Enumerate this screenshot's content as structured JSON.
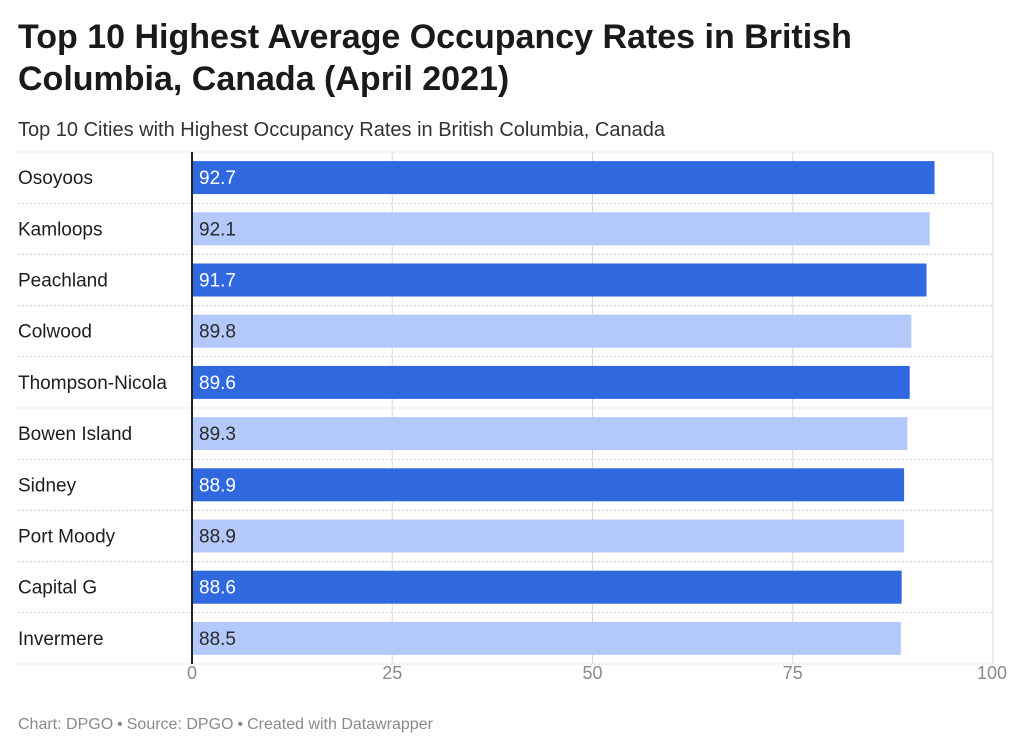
{
  "title": "Top 10 Highest Average Occupancy Rates in British Columbia, Canada (April 2021)",
  "subtitle": "Top 10 Cities with Highest Occupancy Rates in British Columbia, Canada",
  "footer": {
    "chart": "Chart: DPGO",
    "source": "Source: DPGO",
    "created": "Created with Datawrapper",
    "separator": "•"
  },
  "colors": {
    "dark_bar": "#3068e0",
    "light_bar": "#b3c8fb",
    "dark_label": "#ffffff",
    "light_label": "#2a2a2a",
    "grid": "#d8d8d8",
    "axis": "#222222",
    "tick_label": "#8a8a8a"
  },
  "chart_data": {
    "type": "bar",
    "orientation": "horizontal",
    "categories": [
      "Osoyoos",
      "Kamloops",
      "Peachland",
      "Colwood",
      "Thompson-Nicola",
      "Bowen Island",
      "Sidney",
      "Port Moody",
      "Capital G",
      "Invermere"
    ],
    "values": [
      92.7,
      92.1,
      91.7,
      89.8,
      89.6,
      89.3,
      88.9,
      88.9,
      88.6,
      88.5
    ],
    "value_labels": [
      "92.7",
      "92.1",
      "91.7",
      "89.8",
      "89.6",
      "89.3",
      "88.9",
      "88.9",
      "88.6",
      "88.5"
    ],
    "bar_shade": [
      "dark",
      "light",
      "dark",
      "light",
      "dark",
      "light",
      "dark",
      "light",
      "dark",
      "light"
    ],
    "xlim": [
      0,
      100
    ],
    "x_ticks": [
      0,
      25,
      50,
      75,
      100
    ],
    "x_tick_labels": [
      "0",
      "25",
      "50",
      "75",
      "100"
    ],
    "grid": true,
    "legend": "none"
  }
}
